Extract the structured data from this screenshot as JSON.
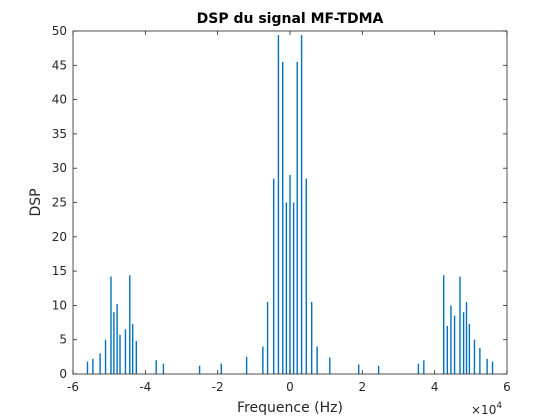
{
  "chart_data": {
    "type": "bar",
    "title": "DSP du signal MF-TDMA",
    "xlabel": "Frequence (Hz)",
    "ylabel": "DSP",
    "x_exponent_label": "×10",
    "x_exponent_power": "4",
    "x_scale": 10000,
    "xlim": [
      -6,
      6
    ],
    "ylim": [
      0,
      50
    ],
    "x_ticks": [
      -6,
      -4,
      -2,
      0,
      2,
      4,
      6
    ],
    "x_tick_labels": [
      "-6",
      "-4",
      "-2",
      "0",
      "2",
      "4",
      "6"
    ],
    "y_ticks": [
      0,
      5,
      10,
      15,
      20,
      25,
      30,
      35,
      40,
      45,
      50
    ],
    "y_tick_labels": [
      "0",
      "5",
      "10",
      "15",
      "20",
      "25",
      "30",
      "35",
      "40",
      "45",
      "50"
    ],
    "grid": false,
    "box": true,
    "color": "#0072BD",
    "series": [
      {
        "x": [
          -4.95,
          -4.87,
          -4.78,
          -4.7,
          -4.55,
          -4.43,
          -4.35,
          -4.25,
          -5.1,
          -5.25,
          -5.45,
          -5.6,
          -3.7,
          -3.5,
          -0.62,
          -0.45,
          -0.32,
          -0.2,
          -0.1,
          0.0,
          0.1,
          0.2,
          0.32,
          0.45,
          0.6,
          0.75,
          -0.75,
          4.25,
          4.35,
          4.45,
          4.55,
          4.7,
          4.8,
          4.88,
          4.96,
          5.1,
          5.25,
          5.45,
          5.6,
          3.55,
          3.7,
          -2.5,
          -1.9,
          -1.2,
          1.1,
          1.9,
          2.45
        ],
        "values": [
          14.2,
          9.0,
          10.2,
          5.7,
          6.5,
          14.4,
          7.3,
          4.8,
          5.0,
          3.0,
          2.2,
          1.8,
          2.0,
          1.5,
          10.5,
          28.5,
          49.4,
          45.5,
          25.0,
          29.0,
          25.0,
          45.5,
          49.4,
          28.5,
          10.5,
          4.0,
          4.0,
          14.4,
          7.0,
          10.0,
          8.5,
          14.2,
          9.0,
          10.5,
          7.3,
          5.0,
          3.8,
          2.2,
          1.8,
          1.5,
          2.0,
          1.2,
          1.5,
          2.5,
          2.4,
          1.4,
          1.2
        ]
      }
    ]
  }
}
